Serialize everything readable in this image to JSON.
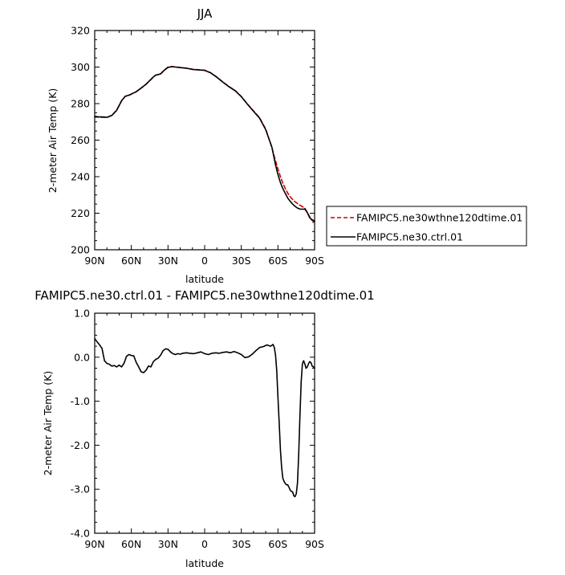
{
  "chart_data": [
    {
      "type": "line",
      "title": "JJA",
      "xlabel": "latitude",
      "ylabel": "2-meter Air Temp (K)",
      "xlim": [
        90,
        -90
      ],
      "ylim": [
        200,
        320
      ],
      "xticks": [
        90,
        60,
        30,
        0,
        -30,
        -60,
        -90
      ],
      "xtick_labels": [
        "90N",
        "60N",
        "30N",
        "0",
        "30S",
        "60S",
        "90S"
      ],
      "yticks": [
        200,
        220,
        240,
        260,
        280,
        300,
        320
      ],
      "ytick_labels": [
        "200",
        "220",
        "240",
        "260",
        "280",
        "300",
        "320"
      ],
      "legend_position": "right",
      "series": [
        {
          "name": "FAMIPC5.ne30wthne120dtime.01",
          "color": "#cc0000",
          "dash": "dashed",
          "x": [
            90,
            87,
            84,
            80,
            76,
            72,
            68,
            65,
            62,
            59,
            56,
            52,
            48,
            45,
            42,
            40,
            38,
            36,
            33,
            30,
            27,
            24,
            20,
            15,
            10,
            5,
            0,
            -5,
            -10,
            -15,
            -20,
            -25,
            -30,
            -35,
            -40,
            -45,
            -50,
            -55,
            -58,
            -60,
            -62,
            -64,
            -66,
            -68,
            -70,
            -72,
            -74,
            -76,
            -78,
            -80,
            -82,
            -84,
            -86,
            -88,
            -90
          ],
          "y": [
            272.6,
            272.6,
            272.5,
            272.5,
            273.5,
            276.5,
            281.5,
            284,
            284.5,
            285.5,
            286.5,
            288.5,
            290.5,
            292.5,
            294.5,
            295.6,
            295.8,
            296.3,
            298.4,
            300,
            300.3,
            300.1,
            299.8,
            299.4,
            298.8,
            298.5,
            298.3,
            296.9,
            294.5,
            291.8,
            289.3,
            287.1,
            283.9,
            279.8,
            276,
            272.2,
            266,
            256,
            248.6,
            244.3,
            240,
            236.5,
            233.5,
            231,
            229,
            227.5,
            226.3,
            225.3,
            224.4,
            223.6,
            222.8,
            220.5,
            218,
            216.5,
            215.8
          ]
        },
        {
          "name": "FAMIPC5.ne30.ctrl.01",
          "color": "#000000",
          "dash": "solid",
          "x": [
            90,
            87,
            84,
            80,
            76,
            72,
            68,
            65,
            62,
            59,
            56,
            52,
            48,
            45,
            42,
            40,
            38,
            36,
            33,
            30,
            27,
            24,
            20,
            15,
            10,
            5,
            0,
            -5,
            -10,
            -15,
            -20,
            -25,
            -30,
            -35,
            -40,
            -45,
            -50,
            -55,
            -58,
            -60,
            -62,
            -64,
            -66,
            -68,
            -70,
            -72,
            -74,
            -76,
            -78,
            -80,
            -82,
            -84,
            -86,
            -88,
            -90
          ],
          "y": [
            273,
            272.8,
            272.7,
            272.5,
            273.5,
            276.3,
            281.6,
            284,
            284.6,
            285.6,
            286.5,
            288.5,
            290.6,
            292.6,
            294.6,
            295.6,
            295.9,
            296.3,
            298.3,
            299.8,
            300.2,
            300,
            299.7,
            299.4,
            298.7,
            298.4,
            298.2,
            296.8,
            294.4,
            291.7,
            289.2,
            287,
            283.8,
            279.7,
            275.8,
            272,
            265.7,
            256.3,
            246.5,
            241.2,
            236.8,
            233.5,
            230.8,
            228.3,
            226.5,
            225,
            223.8,
            222.8,
            222.3,
            222.2,
            222.3,
            220.3,
            217.6,
            216.1,
            215.5
          ]
        }
      ]
    },
    {
      "type": "line",
      "title": "FAMIPC5.ne30.ctrl.01 - FAMIPC5.ne30wthne120dtime.01",
      "xlabel": "latitude",
      "ylabel": "2-meter Air Temp (K)",
      "xlim": [
        90,
        -90
      ],
      "ylim": [
        -4,
        1
      ],
      "xticks": [
        90,
        60,
        30,
        0,
        -30,
        -60,
        -90
      ],
      "xtick_labels": [
        "90N",
        "60N",
        "30N",
        "0",
        "30S",
        "60S",
        "90S"
      ],
      "yticks": [
        -4,
        -3,
        -2,
        -1,
        0,
        1
      ],
      "ytick_labels": [
        "-4.0",
        "-3.0",
        "-2.0",
        "-1.0",
        "0.0",
        "1.0"
      ],
      "series": [
        {
          "color": "#000000",
          "dash": "solid",
          "x": [
            90,
            88,
            86,
            84,
            82,
            80,
            78,
            76,
            74,
            72,
            70,
            68,
            66,
            64,
            62,
            60,
            58,
            56,
            54,
            52,
            50,
            48,
            46,
            44,
            42,
            40,
            38,
            36,
            34,
            32,
            30,
            28,
            26,
            24,
            22,
            20,
            18,
            15,
            12,
            9,
            6,
            3,
            0,
            -3,
            -6,
            -9,
            -12,
            -15,
            -18,
            -21,
            -24,
            -27,
            -30,
            -33,
            -36,
            -39,
            -42,
            -45,
            -48,
            -51,
            -54,
            -56,
            -57,
            -58,
            -59,
            -60,
            -61,
            -62,
            -63,
            -64,
            -65,
            -66,
            -67,
            -68,
            -69,
            -70,
            -71,
            -72,
            -73,
            -74,
            -75,
            -76,
            -77,
            -78,
            -79,
            -80,
            -81,
            -82,
            -83,
            -84,
            -85,
            -86,
            -87,
            -88,
            -89,
            -90
          ],
          "y": [
            0.42,
            0.35,
            0.28,
            0.2,
            -0.08,
            -0.14,
            -0.16,
            -0.2,
            -0.19,
            -0.22,
            -0.18,
            -0.22,
            -0.14,
            0.02,
            0.06,
            0.04,
            0.03,
            -0.12,
            -0.22,
            -0.33,
            -0.35,
            -0.3,
            -0.2,
            -0.22,
            -0.1,
            -0.05,
            -0.02,
            0.05,
            0.15,
            0.19,
            0.18,
            0.12,
            0.08,
            0.06,
            0.08,
            0.07,
            0.09,
            0.1,
            0.09,
            0.08,
            0.1,
            0.12,
            0.08,
            0.06,
            0.09,
            0.1,
            0.09,
            0.11,
            0.12,
            0.1,
            0.13,
            0.1,
            0.06,
            -0.01,
            0.01,
            0.07,
            0.15,
            0.22,
            0.24,
            0.28,
            0.25,
            0.29,
            0.22,
            0.05,
            -0.3,
            -0.9,
            -1.5,
            -2.1,
            -2.5,
            -2.75,
            -2.82,
            -2.87,
            -2.9,
            -2.9,
            -2.95,
            -3.02,
            -3.05,
            -3.06,
            -3.15,
            -3.17,
            -3.1,
            -2.85,
            -2.2,
            -1.35,
            -0.55,
            -0.15,
            -0.08,
            -0.15,
            -0.25,
            -0.22,
            -0.15,
            -0.1,
            -0.12,
            -0.2,
            -0.22,
            -0.25
          ]
        }
      ]
    }
  ]
}
